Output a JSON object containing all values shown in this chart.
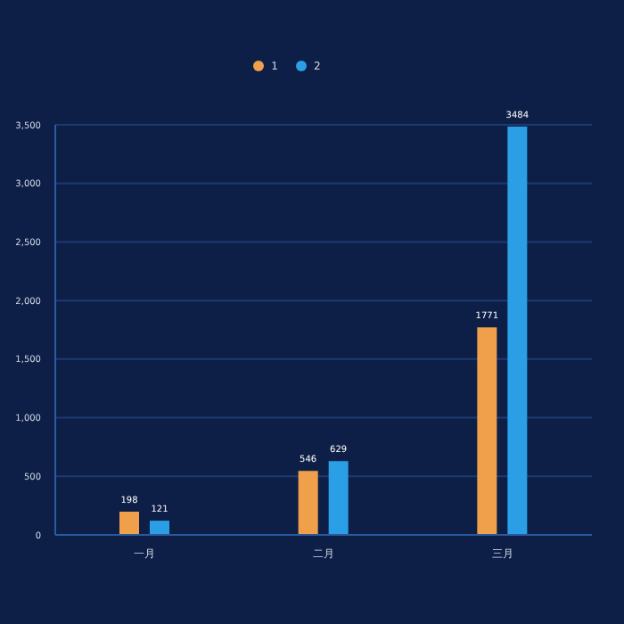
{
  "chart_data": {
    "type": "bar",
    "categories": [
      "一月",
      "二月",
      "三月"
    ],
    "series": [
      {
        "name": "1",
        "color": "#f0a04b",
        "values": [
          198,
          546,
          1771
        ]
      },
      {
        "name": "2",
        "color": "#2a9fe6",
        "values": [
          121,
          629,
          3484
        ]
      }
    ],
    "ylim": [
      0,
      3500
    ],
    "yticks": [
      0,
      500,
      {
        "value": 1000,
        "label": "1,000"
      },
      {
        "value": 1500,
        "label": "1,500"
      },
      {
        "value": 2000,
        "label": "2,000"
      },
      {
        "value": 2500,
        "label": "2,500"
      },
      {
        "value": 3000,
        "label": "3,000"
      },
      {
        "value": 3500,
        "label": "3,500"
      }
    ],
    "grid": "y",
    "legend": "top",
    "data_labels": true
  }
}
